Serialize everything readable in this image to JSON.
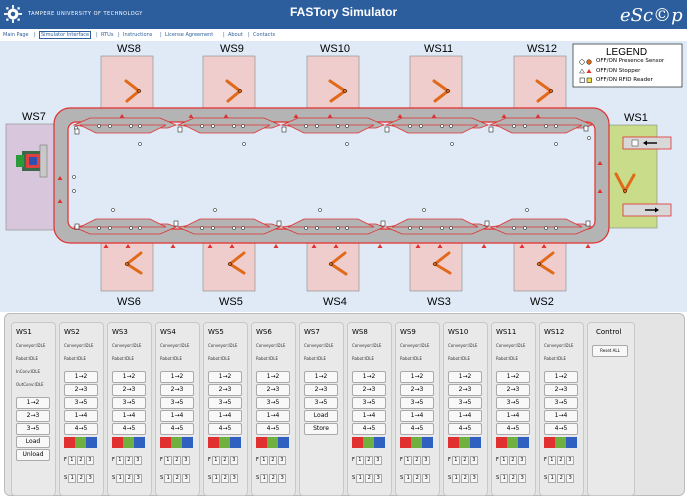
{
  "header": {
    "university": "TAMPERE UNIVERSITY OF TECHNOLOGY",
    "title": "FASTory Simulator",
    "brand": "eSc©p"
  },
  "nav": {
    "items": [
      "Main Page",
      "Simulator Interface",
      "RTUs",
      "Instructions",
      "License Agreement",
      "About",
      "Contacts"
    ],
    "separator": "|"
  },
  "legend": {
    "title": "LEGEND",
    "items": [
      "OFF/ON Presence Sensor",
      "OFF/ON Stopper",
      "OFF/ON RFID Reader"
    ]
  },
  "stations": {
    "top": [
      "WS8",
      "WS9",
      "WS10",
      "WS11",
      "WS12"
    ],
    "bottom": [
      "WS6",
      "WS5",
      "WS4",
      "WS3",
      "WS2"
    ],
    "left": "WS7",
    "right": "WS1"
  },
  "controls": {
    "ws1": {
      "name": "WS1",
      "status": [
        "Conveyor:IDLE",
        "Robot:IDLE",
        "InConv:IDLE",
        "OutConv:IDLE"
      ],
      "buttons": [
        "1→2",
        "2→3",
        "3→5",
        "Load",
        "Unload"
      ]
    },
    "ws7": {
      "name": "WS7",
      "status": [
        "Conveyor:IDLE",
        "Robot:IDLE"
      ],
      "buttons": [
        "1→2",
        "2→3",
        "3→5",
        "Load",
        "Store"
      ]
    },
    "stations": [
      "WS2",
      "WS3",
      "WS4",
      "WS5",
      "WS6",
      "WS8",
      "WS9",
      "WS10",
      "WS11",
      "WS12"
    ],
    "status": [
      "Conveyor:IDLE",
      "Robot:IDLE"
    ],
    "buttons": [
      "1→2",
      "2→3",
      "3→5",
      "1→4",
      "4→5"
    ],
    "f_label": "F",
    "s_label": "S",
    "slots": [
      "1",
      "2",
      "3"
    ],
    "control_title": "Control",
    "reset_label": "Reset ALL"
  },
  "colors": {
    "header": "#2c5e9d",
    "conveyor_outline": "#e03030",
    "station_fill": "#f0cdcd",
    "ws1_fill": "#c8dc8a",
    "ws7_fill": "#d8c6dc",
    "robot_arm": "#e06a1a",
    "pallet_red": "#e03030",
    "pallet_green": "#70b040",
    "pallet_blue": "#3060c0"
  }
}
